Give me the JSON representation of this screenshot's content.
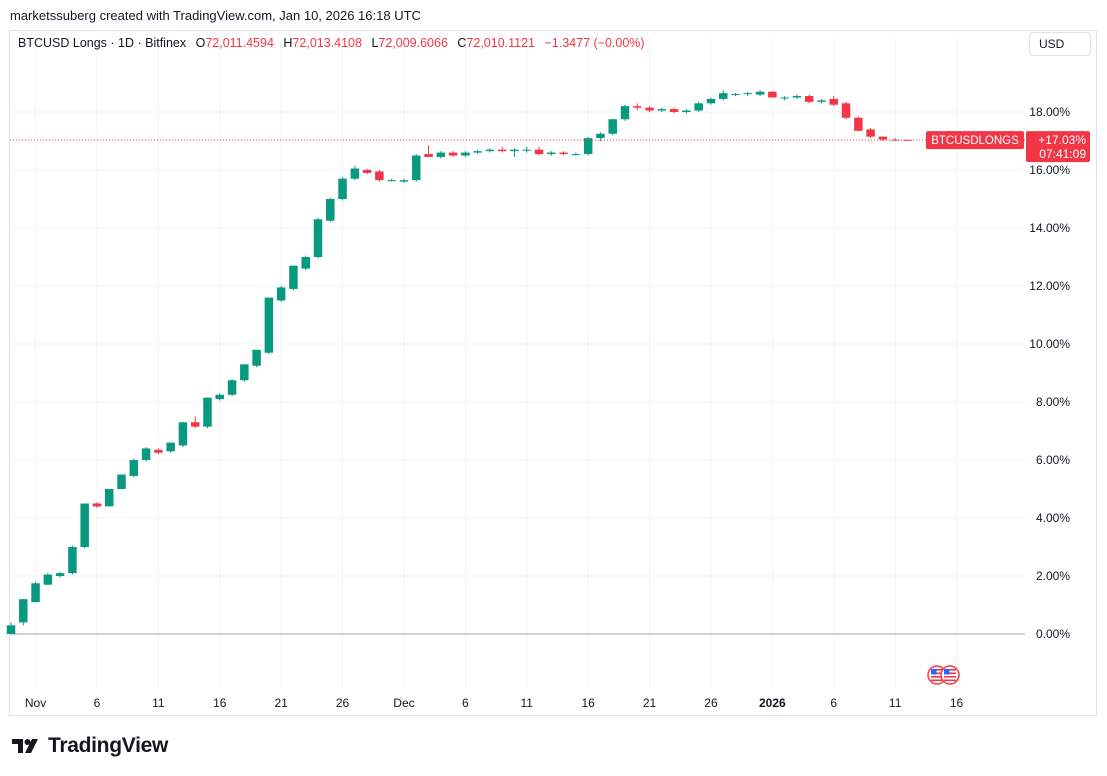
{
  "header": {
    "attribution": "marketssuberg created with TradingView.com, Jan 10, 2026 16:18 UTC"
  },
  "legend": {
    "symbol": "BTCUSD Longs · 1D · Bitfinex",
    "o_label": "O",
    "o_value": "72,011.4594",
    "h_label": "H",
    "h_value": "72,013.4108",
    "l_label": "L",
    "l_value": "72,009.6066",
    "c_label": "C",
    "c_value": "72,010.1121",
    "change": "−1.3477 (−0.00%)"
  },
  "currency_button": {
    "label": "USD"
  },
  "price_tag": {
    "name": "BTCUSDLONGS",
    "value": "+17.03%",
    "countdown": "07:41:09",
    "color": "#f23645"
  },
  "logo": {
    "text": "TradingView"
  },
  "colors": {
    "up": "#089981",
    "down": "#f23645",
    "grid": "#f0f3fa",
    "axis_text": "#131722"
  },
  "chart_data": {
    "type": "candlestick",
    "title": "BTCUSD Longs · 1D · Bitfinex",
    "ylabel": "",
    "xlabel": "",
    "y_unit": "%",
    "ylim": [
      -2.0,
      19.8
    ],
    "y_ticks": [
      "0.00%",
      "2.00%",
      "4.00%",
      "6.00%",
      "8.00%",
      "10.00%",
      "12.00%",
      "14.00%",
      "16.00%",
      "18.00%"
    ],
    "x_ticks": [
      {
        "label": "Nov",
        "index": 2,
        "bold": false
      },
      {
        "label": "6",
        "index": 7,
        "bold": false
      },
      {
        "label": "11",
        "index": 12,
        "bold": false
      },
      {
        "label": "16",
        "index": 17,
        "bold": false
      },
      {
        "label": "21",
        "index": 22,
        "bold": false
      },
      {
        "label": "26",
        "index": 27,
        "bold": false
      },
      {
        "label": "Dec",
        "index": 32,
        "bold": false
      },
      {
        "label": "6",
        "index": 37,
        "bold": false
      },
      {
        "label": "11",
        "index": 42,
        "bold": false
      },
      {
        "label": "16",
        "index": 47,
        "bold": false
      },
      {
        "label": "21",
        "index": 52,
        "bold": false
      },
      {
        "label": "26",
        "index": 57,
        "bold": false
      },
      {
        "label": "2026",
        "index": 62,
        "bold": true
      },
      {
        "label": "6",
        "index": 67,
        "bold": false
      },
      {
        "label": "11",
        "index": 72,
        "bold": false
      },
      {
        "label": "16",
        "index": 77,
        "bold": false
      }
    ],
    "last_value": 17.03,
    "candles": [
      {
        "o": 0.0,
        "h": 0.4,
        "l": 0.0,
        "c": 0.3
      },
      {
        "o": 0.4,
        "h": 1.2,
        "l": 0.3,
        "c": 1.2
      },
      {
        "o": 1.1,
        "h": 1.8,
        "l": 1.1,
        "c": 1.75
      },
      {
        "o": 1.7,
        "h": 2.1,
        "l": 1.7,
        "c": 2.05
      },
      {
        "o": 2.0,
        "h": 2.15,
        "l": 1.95,
        "c": 2.1
      },
      {
        "o": 2.1,
        "h": 3.05,
        "l": 2.05,
        "c": 3.0
      },
      {
        "o": 3.0,
        "h": 4.5,
        "l": 2.95,
        "c": 4.5
      },
      {
        "o": 4.5,
        "h": 4.55,
        "l": 4.35,
        "c": 4.4
      },
      {
        "o": 4.4,
        "h": 5.0,
        "l": 4.4,
        "c": 5.0
      },
      {
        "o": 5.0,
        "h": 5.5,
        "l": 5.0,
        "c": 5.5
      },
      {
        "o": 5.45,
        "h": 6.05,
        "l": 5.4,
        "c": 6.0
      },
      {
        "o": 6.0,
        "h": 6.45,
        "l": 5.95,
        "c": 6.4
      },
      {
        "o": 6.35,
        "h": 6.4,
        "l": 6.2,
        "c": 6.25
      },
      {
        "o": 6.3,
        "h": 6.6,
        "l": 6.25,
        "c": 6.6
      },
      {
        "o": 6.5,
        "h": 7.3,
        "l": 6.45,
        "c": 7.3
      },
      {
        "o": 7.3,
        "h": 7.5,
        "l": 7.1,
        "c": 7.15
      },
      {
        "o": 7.15,
        "h": 8.15,
        "l": 7.1,
        "c": 8.15
      },
      {
        "o": 8.1,
        "h": 8.3,
        "l": 8.05,
        "c": 8.25
      },
      {
        "o": 8.25,
        "h": 8.8,
        "l": 8.2,
        "c": 8.75
      },
      {
        "o": 8.75,
        "h": 9.3,
        "l": 8.7,
        "c": 9.3
      },
      {
        "o": 9.25,
        "h": 9.8,
        "l": 9.2,
        "c": 9.8
      },
      {
        "o": 9.7,
        "h": 11.6,
        "l": 9.65,
        "c": 11.6
      },
      {
        "o": 11.5,
        "h": 12.0,
        "l": 11.45,
        "c": 11.95
      },
      {
        "o": 11.9,
        "h": 12.7,
        "l": 11.85,
        "c": 12.7
      },
      {
        "o": 12.6,
        "h": 13.05,
        "l": 12.55,
        "c": 13.0
      },
      {
        "o": 13.0,
        "h": 14.35,
        "l": 12.95,
        "c": 14.3
      },
      {
        "o": 14.25,
        "h": 15.05,
        "l": 14.2,
        "c": 15.0
      },
      {
        "o": 15.0,
        "h": 15.75,
        "l": 14.95,
        "c": 15.7
      },
      {
        "o": 15.7,
        "h": 16.15,
        "l": 15.65,
        "c": 16.05
      },
      {
        "o": 16.0,
        "h": 16.05,
        "l": 15.85,
        "c": 15.9
      },
      {
        "o": 15.95,
        "h": 16.0,
        "l": 15.6,
        "c": 15.65
      },
      {
        "o": 15.65,
        "h": 15.7,
        "l": 15.6,
        "c": 15.65
      },
      {
        "o": 15.6,
        "h": 15.7,
        "l": 15.55,
        "c": 15.65
      },
      {
        "o": 15.65,
        "h": 16.55,
        "l": 15.6,
        "c": 16.5
      },
      {
        "o": 16.55,
        "h": 16.85,
        "l": 16.45,
        "c": 16.45
      },
      {
        "o": 16.45,
        "h": 16.65,
        "l": 16.4,
        "c": 16.6
      },
      {
        "o": 16.6,
        "h": 16.65,
        "l": 16.45,
        "c": 16.5
      },
      {
        "o": 16.5,
        "h": 16.65,
        "l": 16.45,
        "c": 16.6
      },
      {
        "o": 16.6,
        "h": 16.7,
        "l": 16.55,
        "c": 16.65
      },
      {
        "o": 16.65,
        "h": 16.75,
        "l": 16.6,
        "c": 16.7
      },
      {
        "o": 16.7,
        "h": 16.8,
        "l": 16.6,
        "c": 16.65
      },
      {
        "o": 16.65,
        "h": 16.75,
        "l": 16.45,
        "c": 16.7
      },
      {
        "o": 16.7,
        "h": 16.8,
        "l": 16.6,
        "c": 16.7
      },
      {
        "o": 16.7,
        "h": 16.8,
        "l": 16.5,
        "c": 16.55
      },
      {
        "o": 16.55,
        "h": 16.65,
        "l": 16.5,
        "c": 16.6
      },
      {
        "o": 16.6,
        "h": 16.65,
        "l": 16.5,
        "c": 16.55
      },
      {
        "o": 16.55,
        "h": 16.6,
        "l": 16.5,
        "c": 16.55
      },
      {
        "o": 16.55,
        "h": 17.15,
        "l": 16.5,
        "c": 17.1
      },
      {
        "o": 17.1,
        "h": 17.3,
        "l": 17.0,
        "c": 17.25
      },
      {
        "o": 17.25,
        "h": 17.75,
        "l": 17.2,
        "c": 17.75
      },
      {
        "o": 17.75,
        "h": 18.25,
        "l": 17.7,
        "c": 18.2
      },
      {
        "o": 18.2,
        "h": 18.3,
        "l": 18.05,
        "c": 18.15
      },
      {
        "o": 18.15,
        "h": 18.2,
        "l": 18.0,
        "c": 18.05
      },
      {
        "o": 18.05,
        "h": 18.15,
        "l": 18.0,
        "c": 18.1
      },
      {
        "o": 18.1,
        "h": 18.15,
        "l": 17.95,
        "c": 18.0
      },
      {
        "o": 18.0,
        "h": 18.1,
        "l": 17.95,
        "c": 18.05
      },
      {
        "o": 18.05,
        "h": 18.35,
        "l": 18.0,
        "c": 18.3
      },
      {
        "o": 18.3,
        "h": 18.5,
        "l": 18.25,
        "c": 18.45
      },
      {
        "o": 18.45,
        "h": 18.75,
        "l": 18.4,
        "c": 18.65
      },
      {
        "o": 18.6,
        "h": 18.65,
        "l": 18.55,
        "c": 18.62
      },
      {
        "o": 18.62,
        "h": 18.7,
        "l": 18.55,
        "c": 18.65
      },
      {
        "o": 18.6,
        "h": 18.75,
        "l": 18.55,
        "c": 18.7
      },
      {
        "o": 18.7,
        "h": 18.72,
        "l": 18.5,
        "c": 18.5
      },
      {
        "o": 18.5,
        "h": 18.55,
        "l": 18.4,
        "c": 18.5
      },
      {
        "o": 18.5,
        "h": 18.6,
        "l": 18.45,
        "c": 18.55
      },
      {
        "o": 18.55,
        "h": 18.6,
        "l": 18.3,
        "c": 18.35
      },
      {
        "o": 18.35,
        "h": 18.45,
        "l": 18.3,
        "c": 18.4
      },
      {
        "o": 18.45,
        "h": 18.55,
        "l": 18.2,
        "c": 18.25
      },
      {
        "o": 18.3,
        "h": 18.35,
        "l": 17.75,
        "c": 17.8
      },
      {
        "o": 17.8,
        "h": 17.85,
        "l": 17.35,
        "c": 17.35
      },
      {
        "o": 17.4,
        "h": 17.45,
        "l": 17.1,
        "c": 17.15
      },
      {
        "o": 17.15,
        "h": 17.15,
        "l": 17.0,
        "c": 17.05
      },
      {
        "o": 17.05,
        "h": 17.1,
        "l": 17.0,
        "c": 17.02
      },
      {
        "o": 17.04,
        "h": 17.05,
        "l": 17.02,
        "c": 17.03
      }
    ]
  }
}
